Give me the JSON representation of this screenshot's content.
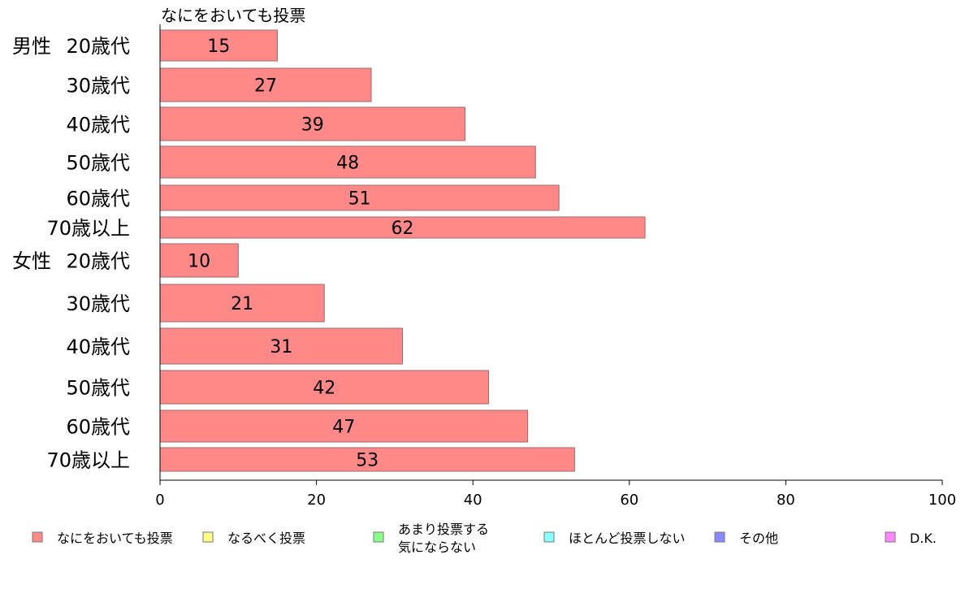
{
  "chart_data": {
    "type": "bar",
    "orientation": "horizontal",
    "title": "なにをおいても投票",
    "xlim": [
      0,
      100
    ],
    "xticks": [
      0,
      20,
      40,
      60,
      80,
      100
    ],
    "grid": false,
    "groups": [
      {
        "name": "男性",
        "categories": [
          "20歳代",
          "30歳代",
          "40歳代",
          "50歳代",
          "60歳代",
          "70歳以上"
        ],
        "values": [
          15,
          27,
          39,
          48,
          51,
          62
        ]
      },
      {
        "name": "女性",
        "categories": [
          "20歳代",
          "30歳代",
          "40歳代",
          "50歳代",
          "60歳代",
          "70歳以上"
        ],
        "values": [
          10,
          21,
          31,
          42,
          47,
          53
        ]
      }
    ],
    "bar_color": "#ff8888",
    "legend_position": "bottom",
    "legend": [
      {
        "label": [
          "なにをおいても投票"
        ],
        "color": "#ff8888"
      },
      {
        "label": [
          "なるべく投票"
        ],
        "color": "#ffff88"
      },
      {
        "label": [
          "あまり投票する",
          "気にならない"
        ],
        "color": "#88ff88"
      },
      {
        "label": [
          "ほとんど投票しない"
        ],
        "color": "#88ffff"
      },
      {
        "label": [
          "その他"
        ],
        "color": "#8888ff"
      },
      {
        "label": [
          "D.K."
        ],
        "color": "#ff88ff"
      }
    ]
  }
}
